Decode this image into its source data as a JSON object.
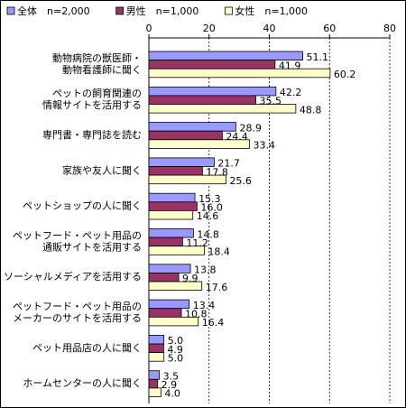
{
  "chart_data": {
    "type": "bar",
    "orientation": "horizontal",
    "categories": [
      "動物病院の獣医師・\n動物看護師に聞く",
      "ペットの飼育関連の\n情報サイトを活用する",
      "専門書・専門誌を読む",
      "家族や友人に聞く",
      "ペットショップの人に聞く",
      "ペットフード・ペット用品の\n通販サイトを活用する",
      "ソーシャルメディアを活用する",
      "ペットフード・ペット用品の\nメーカーのサイトを活用する",
      "ペット用品店の人に聞く",
      "ホームセンターの人に聞く"
    ],
    "series": [
      {
        "name": "全体　n=2,000",
        "color": "#9999ff",
        "values": [
          51.1,
          42.2,
          28.9,
          21.7,
          15.3,
          14.8,
          13.8,
          13.4,
          5.0,
          3.5
        ],
        "value_labels": [
          "51.1",
          "42.2",
          "28.9",
          "21.7",
          "15.3",
          "14.8",
          "13.8",
          "13.4",
          "5.0",
          "3.5"
        ]
      },
      {
        "name": "男性　n=1,000",
        "color": "#993366",
        "values": [
          41.9,
          35.5,
          24.4,
          17.8,
          16.0,
          11.2,
          9.9,
          10.8,
          4.9,
          2.9
        ],
        "value_labels": [
          "41.9",
          "35.5",
          "24.4",
          "17.8",
          "16.0",
          "11.2",
          "9.9",
          "10.8",
          "4.9",
          "2.9"
        ]
      },
      {
        "name": "女性　n=1,000",
        "color": "#ffffcc",
        "values": [
          60.2,
          48.8,
          33.4,
          25.6,
          14.6,
          18.4,
          17.6,
          16.4,
          5.0,
          4.0
        ],
        "value_labels": [
          "60.2",
          "48.8",
          "33.4",
          "25.6",
          "14.6",
          "18.4",
          "17.6",
          "16.4",
          "5.0",
          "4.0"
        ]
      }
    ],
    "xlim": [
      0,
      80
    ],
    "xticks": [
      0,
      20,
      40,
      60,
      80
    ],
    "grid": true,
    "legend": "top"
  }
}
